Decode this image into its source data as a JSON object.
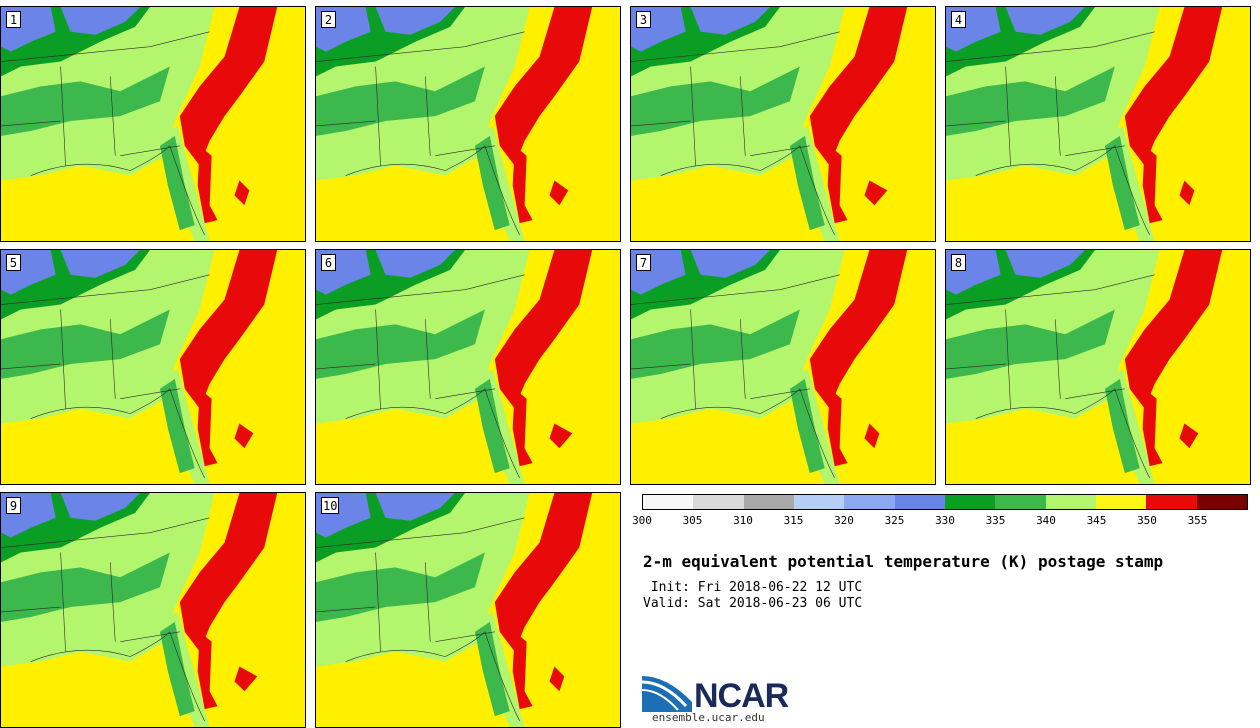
{
  "panels": [
    {
      "label": "1"
    },
    {
      "label": "2"
    },
    {
      "label": "3"
    },
    {
      "label": "4"
    },
    {
      "label": "5"
    },
    {
      "label": "6"
    },
    {
      "label": "7"
    },
    {
      "label": "8"
    },
    {
      "label": "9"
    },
    {
      "label": "10"
    }
  ],
  "colorbar": {
    "colors": [
      "#f7f7f7",
      "#d9d9d9",
      "#a9a9a9",
      "#b5cef5",
      "#8ca8f0",
      "#6a84e8",
      "#0b9e24",
      "#3cb84c",
      "#b4f56e",
      "#fff516",
      "#e80a0a",
      "#7a0000"
    ],
    "ticks": [
      "300",
      "305",
      "310",
      "315",
      "320",
      "325",
      "330",
      "335",
      "340",
      "345",
      "350",
      "355"
    ]
  },
  "title": "2-m equivalent potential temperature (K) postage stamp",
  "init": " Init: Fri 2018-06-22 12 UTC",
  "valid": "Valid: Sat 2018-06-23 06 UTC",
  "logo": {
    "text": "NCAR",
    "url": "ensemble.ucar.edu"
  },
  "map_colors": {
    "land": "#b4f56e",
    "dark": "#0b9e24",
    "mid": "#3cb84c",
    "cool": "#6a84e8",
    "warm": "#fff516",
    "hot": "#e80a0a"
  }
}
